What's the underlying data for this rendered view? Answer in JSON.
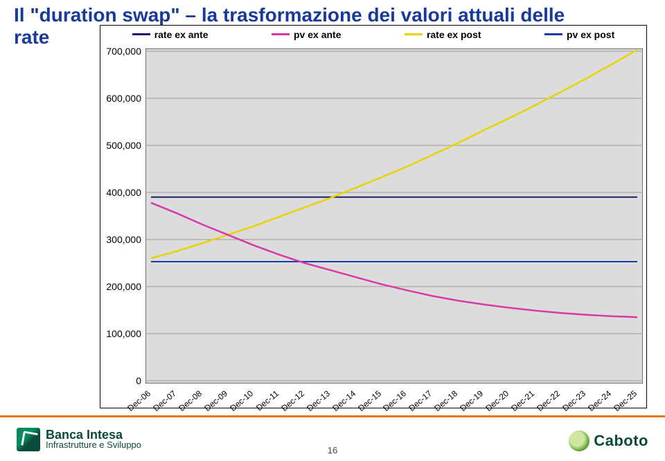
{
  "title_line1": "Il \"duration swap\" – la trasformazione dei valori attuali delle",
  "title_line2": "rate",
  "legend": {
    "s1": {
      "label": "rate ex ante",
      "color": "#1a1a6a"
    },
    "s2": {
      "label": "pv ex ante",
      "color": "#d63aa8"
    },
    "s3": {
      "label": "rate ex post",
      "color": "#e8d400"
    },
    "s4": {
      "label": "pv ex post",
      "color": "#1a3aaa"
    }
  },
  "chart": {
    "type": "line",
    "background_color": "#dcdcdc",
    "plot_border_color": "#000000",
    "grid_color": "#9a9a9a",
    "axis_font_size": 13,
    "ylim": [
      0,
      700000
    ],
    "ytick_step": 100000,
    "ytick_labels": [
      "0",
      "100,000",
      "200,000",
      "300,000",
      "400,000",
      "500,000",
      "600,000",
      "700,000"
    ],
    "x_categories": [
      "Dec-06",
      "Dec-07",
      "Dec-08",
      "Dec-09",
      "Dec-10",
      "Dec-11",
      "Dec-12",
      "Dec-13",
      "Dec-14",
      "Dec-15",
      "Dec-16",
      "Dec-17",
      "Dec-18",
      "Dec-19",
      "Dec-20",
      "Dec-21",
      "Dec-22",
      "Dec-23",
      "Dec-24",
      "Dec-25"
    ],
    "series": {
      "rate_ex_ante": {
        "color": "#1a1a6a",
        "width": 2,
        "values": [
          390000,
          390000,
          390000,
          390000,
          390000,
          390000,
          390000,
          390000,
          390000,
          390000,
          390000,
          390000,
          390000,
          390000,
          390000,
          390000,
          390000,
          390000,
          390000,
          390000
        ]
      },
      "pv_ex_ante": {
        "color": "#d63aa8",
        "width": 2.5,
        "values": [
          378000,
          356000,
          332000,
          310000,
          288000,
          268000,
          250000,
          235000,
          220000,
          205000,
          192000,
          180000,
          170000,
          162000,
          155000,
          149000,
          144000,
          140000,
          137000,
          135000
        ]
      },
      "rate_ex_post": {
        "color": "#e8d400",
        "width": 2.5,
        "values": [
          260000,
          275000,
          292000,
          310000,
          328000,
          348000,
          368000,
          388000,
          410000,
          432000,
          455000,
          480000,
          505000,
          532000,
          558000,
          585000,
          613000,
          642000,
          672000,
          703000
        ]
      },
      "pv_ex_post": {
        "color": "#1a3aaa",
        "width": 2,
        "values": [
          253000,
          253000,
          253000,
          253000,
          253000,
          253000,
          253000,
          253000,
          253000,
          253000,
          253000,
          253000,
          253000,
          253000,
          253000,
          253000,
          253000,
          253000,
          253000,
          253000
        ]
      }
    }
  },
  "page_number": "16",
  "footer_brand": "Banca Intesa",
  "footer_brand_sub": "Infrastrutture e Sviluppo",
  "footer_right": "Caboto"
}
